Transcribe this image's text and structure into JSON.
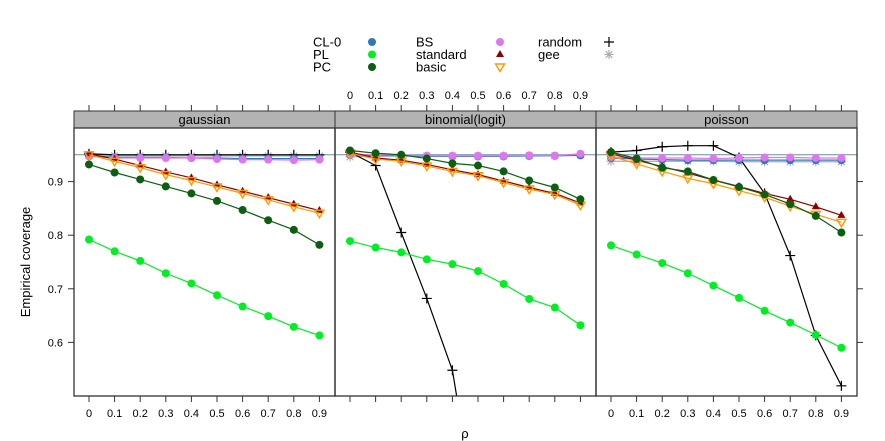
{
  "chart_data": {
    "type": "line",
    "xlabel": "ρ",
    "ylabel": "Empirical coverage",
    "x": [
      0,
      0.1,
      0.2,
      0.3,
      0.4,
      0.5,
      0.6,
      0.7,
      0.8,
      0.9
    ],
    "x_tick_labels": [
      "0",
      "0.1",
      "0.2",
      "0.3",
      "0.4",
      "0.5",
      "0.6",
      "0.7",
      "0.8",
      "0.9"
    ],
    "y_ticks": [
      0.6,
      0.7,
      0.8,
      0.9
    ],
    "y_tick_labels": [
      "0.6",
      "0.7",
      "0.8",
      "0.9"
    ],
    "ylim": [
      0.5,
      1.0
    ],
    "reference_line": 0.95,
    "grid": false,
    "legend_position": "top",
    "legend": [
      {
        "name": "CL-0",
        "symbol": "dot",
        "color": "#2e7ab8"
      },
      {
        "name": "PL",
        "symbol": "dot",
        "color": "#00ee22"
      },
      {
        "name": "PC",
        "symbol": "dot",
        "color": "#0b5e12"
      },
      {
        "name": "BS",
        "symbol": "dot",
        "color": "#dd77ee"
      },
      {
        "name": "standard",
        "symbol": "triangle-up",
        "color": "#8b0000"
      },
      {
        "name": "basic",
        "symbol": "triangle-down-open",
        "color": "#ff9900"
      },
      {
        "name": "random",
        "symbol": "plus",
        "color": "#000000"
      },
      {
        "name": "gee",
        "symbol": "asterisk",
        "color": "#aaaaaa"
      }
    ],
    "panels": [
      {
        "title": "gaussian",
        "series": [
          {
            "name": "gee",
            "values": [
              0.948,
              0.948,
              0.948,
              0.948,
              0.948,
              0.948,
              0.948,
              0.948,
              0.948,
              0.948
            ]
          },
          {
            "name": "random",
            "values": [
              0.952,
              0.95,
              0.95,
              0.95,
              0.95,
              0.95,
              0.95,
              0.95,
              0.95,
              0.95
            ]
          },
          {
            "name": "CL-0",
            "values": [
              0.948,
              0.945,
              0.945,
              0.945,
              0.944,
              0.944,
              0.943,
              0.943,
              0.943,
              0.943
            ]
          },
          {
            "name": "BS",
            "values": [
              0.947,
              0.944,
              0.944,
              0.944,
              0.944,
              0.942,
              0.941,
              0.941,
              0.94,
              0.941
            ]
          },
          {
            "name": "standard",
            "values": [
              0.952,
              0.942,
              0.93,
              0.918,
              0.907,
              0.894,
              0.882,
              0.87,
              0.858,
              0.846
            ]
          },
          {
            "name": "basic",
            "values": [
              0.95,
              0.938,
              0.926,
              0.913,
              0.902,
              0.89,
              0.878,
              0.866,
              0.853,
              0.841
            ]
          },
          {
            "name": "PC",
            "values": [
              0.932,
              0.917,
              0.904,
              0.891,
              0.878,
              0.864,
              0.847,
              0.828,
              0.81,
              0.782
            ]
          },
          {
            "name": "PL",
            "values": [
              0.792,
              0.77,
              0.752,
              0.729,
              0.71,
              0.688,
              0.667,
              0.649,
              0.629,
              0.613
            ]
          }
        ]
      },
      {
        "title": "binomial(logit)",
        "series": [
          {
            "name": "gee",
            "values": [
              0.946,
              0.948,
              0.948,
              0.948,
              0.948,
              0.948,
              0.948,
              0.948,
              0.948,
              0.95
            ]
          },
          {
            "name": "random",
            "values": [
              0.955,
              0.93,
              0.805,
              0.682,
              0.548,
              null,
              null,
              null,
              null,
              null
            ]
          },
          {
            "name": "CL-0",
            "values": [
              0.95,
              0.948,
              0.948,
              0.947,
              0.947,
              0.947,
              0.947,
              0.948,
              0.948,
              0.949
            ]
          },
          {
            "name": "BS",
            "values": [
              0.951,
              0.95,
              0.95,
              0.948,
              0.948,
              0.948,
              0.948,
              0.949,
              0.948,
              0.952
            ]
          },
          {
            "name": "standard",
            "values": [
              0.955,
              0.944,
              0.94,
              0.932,
              0.922,
              0.913,
              0.901,
              0.889,
              0.878,
              0.86
            ]
          },
          {
            "name": "basic",
            "values": [
              0.953,
              0.942,
              0.938,
              0.929,
              0.919,
              0.911,
              0.898,
              0.886,
              0.876,
              0.856
            ]
          },
          {
            "name": "PC",
            "values": [
              0.958,
              0.953,
              0.95,
              0.943,
              0.934,
              0.93,
              0.919,
              0.902,
              0.889,
              0.867
            ]
          },
          {
            "name": "PL",
            "values": [
              0.789,
              0.777,
              0.768,
              0.755,
              0.746,
              0.733,
              0.709,
              0.681,
              0.665,
              0.632
            ]
          }
        ]
      },
      {
        "title": "poisson",
        "series": [
          {
            "name": "gee",
            "values": [
              0.938,
              0.938,
              0.938,
              0.938,
              0.938,
              0.937,
              0.937,
              0.937,
              0.937,
              0.937
            ]
          },
          {
            "name": "random",
            "values": [
              0.955,
              0.958,
              0.965,
              0.967,
              0.967,
              0.945,
              0.878,
              0.762,
              0.613,
              0.519
            ]
          },
          {
            "name": "CL-0",
            "values": [
              0.944,
              0.942,
              0.941,
              0.94,
              0.94,
              0.94,
              0.94,
              0.94,
              0.94,
              0.94
            ]
          },
          {
            "name": "BS",
            "values": [
              0.946,
              0.944,
              0.944,
              0.944,
              0.943,
              0.944,
              0.945,
              0.945,
              0.944,
              0.944
            ]
          },
          {
            "name": "standard",
            "values": [
              0.952,
              0.94,
              0.928,
              0.916,
              0.903,
              0.891,
              0.878,
              0.867,
              0.853,
              0.837
            ]
          },
          {
            "name": "basic",
            "values": [
              0.948,
              0.933,
              0.919,
              0.906,
              0.896,
              0.883,
              0.871,
              0.854,
              0.839,
              0.824
            ]
          },
          {
            "name": "PC",
            "values": [
              0.955,
              0.943,
              0.926,
              0.919,
              0.903,
              0.89,
              0.876,
              0.858,
              0.836,
              0.805
            ]
          },
          {
            "name": "PL",
            "values": [
              0.781,
              0.764,
              0.748,
              0.729,
              0.706,
              0.683,
              0.659,
              0.637,
              0.614,
              0.59
            ]
          }
        ]
      }
    ]
  }
}
